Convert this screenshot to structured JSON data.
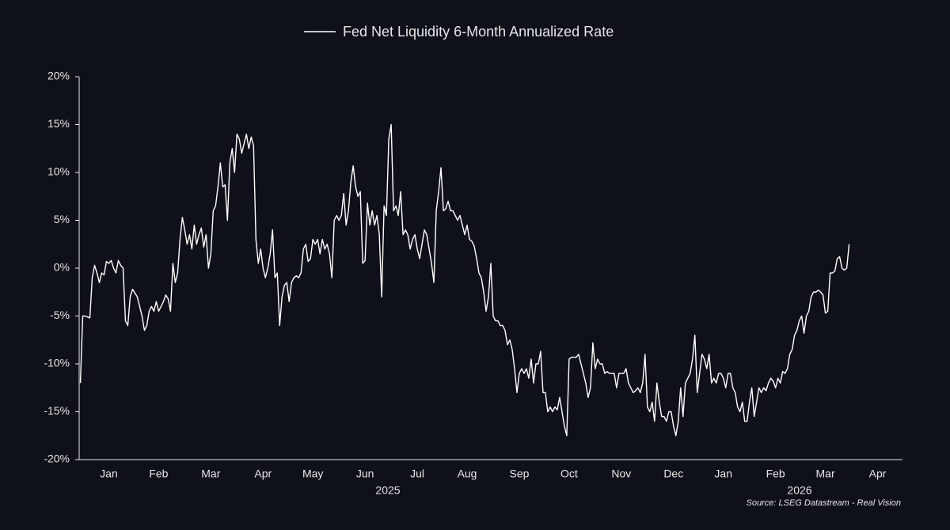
{
  "chart_data": {
    "type": "line",
    "series": [
      {
        "name": "Fed Net Liquidity 6-Month Annualized Rate",
        "color": "#ffffff",
        "values": [
          -12,
          -5,
          -5,
          -5.1,
          -5.2,
          -1,
          0.3,
          -0.5,
          -1.5,
          -0.5,
          -0.7,
          0.7,
          0.5,
          0.8,
          0,
          -0.5,
          0.8,
          0.3,
          0,
          -5.5,
          -6,
          -3,
          -2.2,
          -2.6,
          -3,
          -4,
          -5,
          -6.5,
          -6,
          -4.5,
          -4,
          -4.5,
          -3.5,
          -4.5,
          -4,
          -3.5,
          -2.8,
          -3.2,
          -4.5,
          0.5,
          -1.5,
          -0.5,
          3,
          5.3,
          4,
          2.5,
          3.5,
          2,
          4.5,
          2.5,
          3.5,
          4.2,
          2.2,
          3.5,
          0,
          1.5,
          6,
          6.5,
          8.5,
          11,
          8.5,
          8.7,
          5,
          11,
          12.5,
          10,
          14,
          13.5,
          12,
          13,
          14,
          12.5,
          13.7,
          12.8,
          3,
          0.5,
          2,
          0,
          -1,
          0,
          1.5,
          4,
          -1,
          -0.5,
          -6,
          -3,
          -1.8,
          -1.5,
          -3.5,
          -1.5,
          -1,
          -0.8,
          -1,
          -0.5,
          2,
          2.5,
          0.7,
          1,
          3,
          2.5,
          3,
          1.5,
          3,
          2,
          2.5,
          1.5,
          -1,
          5,
          5.5,
          5,
          5.5,
          7.8,
          4.5,
          6,
          9,
          10.7,
          8.5,
          7.5,
          8,
          0.5,
          0.8,
          6.8,
          4.5,
          6,
          4.5,
          5.5,
          3.5,
          -3,
          6.5,
          5.5,
          13.5,
          15,
          6,
          6.5,
          5.5,
          8,
          3.5,
          4,
          3.5,
          2,
          3,
          3.5,
          2,
          1,
          2.5,
          4,
          3.5,
          2,
          0.5,
          -1.5,
          6,
          8,
          10.5,
          6,
          6.2,
          7,
          6,
          6,
          5.5,
          5,
          5.5,
          4.5,
          3.5,
          4.5,
          3,
          2.8,
          2.3,
          1,
          -0.5,
          -1,
          -2.5,
          -4.5,
          -3,
          0.5,
          -5,
          -5.5,
          -5.5,
          -6,
          -6,
          -6.5,
          -8,
          -7.5,
          -8.5,
          -10.5,
          -13,
          -11,
          -10.5,
          -11,
          -10.5,
          -11.5,
          -9.5,
          -12,
          -10,
          -10,
          -8.7,
          -13,
          -13,
          -15,
          -14.5,
          -15,
          -14.5,
          -14.8,
          -13.5,
          -15,
          -16.5,
          -17.5,
          -9.5,
          -9.3,
          -9.3,
          -9.3,
          -9,
          -10,
          -11,
          -12,
          -13.5,
          -12.5,
          -7.8,
          -10.5,
          -9.5,
          -10,
          -10,
          -11,
          -10.8,
          -11,
          -11,
          -11,
          -12.5,
          -11,
          -11,
          -11,
          -10.5,
          -12,
          -12.5,
          -13,
          -12.8,
          -12.5,
          -13,
          -12,
          -9,
          -14.5,
          -15,
          -14,
          -16,
          -12,
          -14,
          -15.5,
          -15.5,
          -16,
          -15,
          -15,
          -16.5,
          -17.5,
          -16,
          -12.5,
          -15.5,
          -12,
          -11.5,
          -11,
          -9.5,
          -7,
          -13,
          -11,
          -9,
          -9.5,
          -10.5,
          -9,
          -12,
          -11.5,
          -12,
          -11,
          -11,
          -11.5,
          -12.5,
          -11,
          -11,
          -12.5,
          -13,
          -14.5,
          -15,
          -14,
          -16,
          -16,
          -14,
          -12.5,
          -15.5,
          -14,
          -12.5,
          -13,
          -12.5,
          -12.8,
          -12,
          -11.5,
          -11.8,
          -12.5,
          -11.5,
          -12,
          -10.8,
          -11,
          -10.5,
          -9,
          -8.5,
          -7,
          -6.5,
          -5.5,
          -5,
          -6.8,
          -5,
          -4.5,
          -3,
          -2.5,
          -2.5,
          -2.3,
          -2.5,
          -2.8,
          -4.7,
          -4.5,
          -0.5,
          -0.5,
          -0.3,
          1,
          1.2,
          0,
          -0.2,
          0,
          2.5,
          null,
          null,
          null,
          null,
          null,
          null,
          null,
          null,
          null,
          null,
          null,
          null,
          null,
          null,
          null,
          null,
          null,
          null,
          null,
          null,
          null,
          null
        ]
      }
    ],
    "categories": [
      null,
      null,
      null,
      null,
      null,
      null,
      null,
      null,
      null,
      null,
      null,
      null,
      "Jan",
      null,
      null,
      null,
      null,
      null,
      null,
      null,
      null,
      null,
      null,
      null,
      null,
      null,
      null,
      null,
      null,
      null,
      null,
      null,
      null,
      "Feb",
      null,
      null,
      null,
      null,
      null,
      null,
      null,
      null,
      null,
      null,
      null,
      null,
      null,
      null,
      null,
      null,
      null,
      null,
      null,
      null,
      null,
      "Mar",
      null,
      null,
      null,
      null,
      null,
      null,
      null,
      null,
      null,
      null,
      null,
      null,
      null,
      null,
      null,
      null,
      null,
      null,
      null,
      null,
      null,
      "Apr",
      null,
      null,
      null,
      null,
      null,
      null,
      null,
      null,
      null,
      null,
      null,
      null,
      null,
      null,
      null,
      null,
      null,
      null,
      null,
      null,
      "May",
      null,
      null,
      null,
      null,
      null,
      null,
      null,
      null,
      null,
      null,
      null,
      null,
      null,
      null,
      null,
      null,
      null,
      null,
      null,
      null,
      null,
      "Jun",
      null,
      null,
      null,
      null,
      null,
      null,
      null,
      null,
      null,
      null,
      null,
      null,
      null,
      null,
      null,
      null,
      null,
      null,
      null,
      null,
      null,
      "Jul",
      null,
      null,
      null,
      null,
      null,
      null,
      null,
      null,
      null,
      null,
      null,
      null,
      null,
      null,
      null,
      null,
      null,
      null,
      null,
      null,
      "Aug",
      null,
      null,
      null,
      null,
      null,
      null,
      null,
      null,
      null,
      null,
      null,
      null,
      null,
      null,
      null,
      null,
      null,
      null,
      null,
      null,
      null,
      "Sep",
      null,
      null,
      null,
      null,
      null,
      null,
      null,
      null,
      null,
      null,
      null,
      null,
      null,
      null,
      null,
      null,
      null,
      null,
      null,
      null,
      "Oct",
      null,
      null,
      null,
      null,
      null,
      null,
      null,
      null,
      null,
      null,
      null,
      null,
      null,
      null,
      null,
      null,
      null,
      null,
      null,
      null,
      null,
      "Nov",
      null,
      null,
      null,
      null,
      null,
      null,
      null,
      null,
      null,
      null,
      null,
      null,
      null,
      null,
      null,
      null,
      null,
      null,
      null,
      null,
      null,
      "Dec",
      null,
      null,
      null,
      null,
      null,
      null,
      null,
      null,
      null,
      null,
      null,
      null,
      null,
      null,
      null,
      null,
      null,
      null,
      null,
      null,
      "Jan",
      null,
      null,
      null,
      null,
      null,
      null,
      null,
      null,
      null,
      null,
      null,
      null,
      null,
      null,
      null,
      null,
      null,
      null,
      null,
      null,
      null,
      "Feb",
      null,
      null,
      null,
      null,
      null,
      null,
      null,
      null,
      null,
      null,
      null,
      null,
      null,
      null,
      null,
      null,
      null,
      null,
      null,
      null,
      "Mar",
      null,
      null,
      null,
      null,
      null,
      null,
      null,
      null,
      null,
      null,
      null,
      null,
      null,
      null,
      null,
      null,
      null,
      null,
      null,
      null,
      null,
      "Apr",
      null,
      null,
      null,
      null,
      null,
      null,
      null,
      null,
      null,
      null
    ],
    "x_group_labels": [
      "2025",
      "2026"
    ],
    "ylim": [
      -20,
      20
    ],
    "yticks": [
      {
        "value": -20,
        "label": "-20%"
      },
      {
        "value": -15,
        "label": "-15%"
      },
      {
        "value": -10,
        "label": "-10%"
      },
      {
        "value": -5,
        "label": "-5%"
      },
      {
        "value": 0,
        "label": "0%"
      },
      {
        "value": 5,
        "label": "5%"
      },
      {
        "value": 10,
        "label": "10%"
      },
      {
        "value": 15,
        "label": "15%"
      },
      {
        "value": 20,
        "label": "20%"
      }
    ],
    "source": "Source: LSEG Datastream - Real Vision",
    "legend": "top"
  }
}
